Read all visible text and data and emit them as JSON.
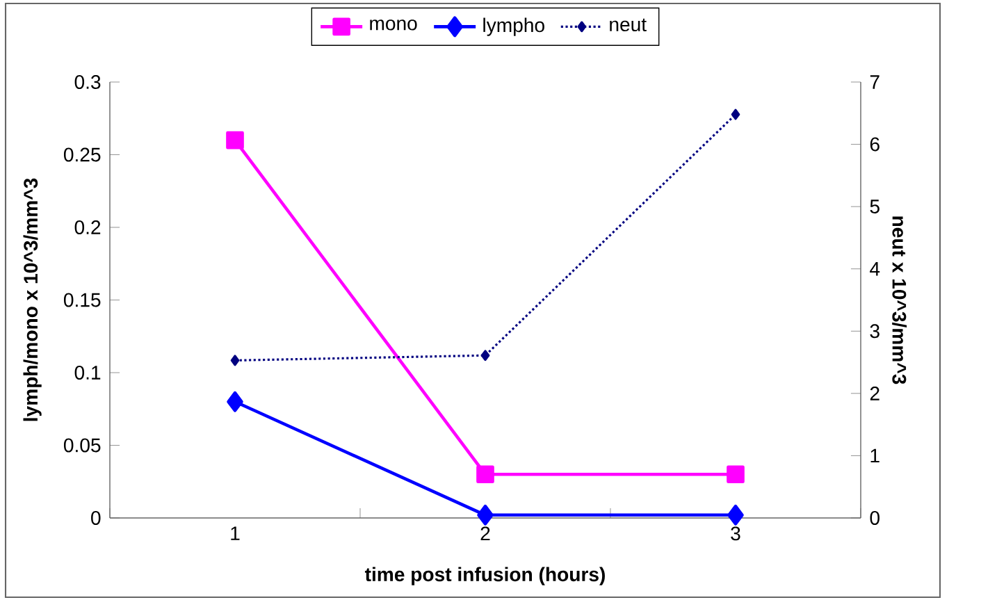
{
  "chart_data": {
    "type": "line",
    "xlabel": "time post infusion (hours)",
    "ylabel": "lymph/mono x 10^3/mm^3",
    "y2label": "neut x 10^3/mm^3",
    "categories": [
      "1",
      "2",
      "3"
    ],
    "series": [
      {
        "name": "mono",
        "color": "#ff00ff",
        "marker": "square",
        "line_style": "solid",
        "values": [
          0.26,
          0.03,
          0.03
        ]
      },
      {
        "name": "lympho",
        "color": "#0000ff",
        "marker": "diamond",
        "line_style": "solid",
        "values": [
          0.08,
          0.002,
          0.002
        ]
      },
      {
        "name": "neut",
        "color": "#000080",
        "marker": "diamond",
        "line_style": "dotted",
        "axis": "y2",
        "values": [
          2.53,
          2.61,
          6.48
        ]
      }
    ],
    "ylim": [
      0,
      0.3
    ],
    "yticks": [
      0,
      0.05,
      0.1,
      0.15,
      0.2,
      0.25,
      0.3
    ],
    "y2lim": [
      0,
      7
    ],
    "y2ticks": [
      0,
      1,
      2,
      3,
      4,
      5,
      6,
      7
    ],
    "grid": false,
    "legend": "top"
  }
}
